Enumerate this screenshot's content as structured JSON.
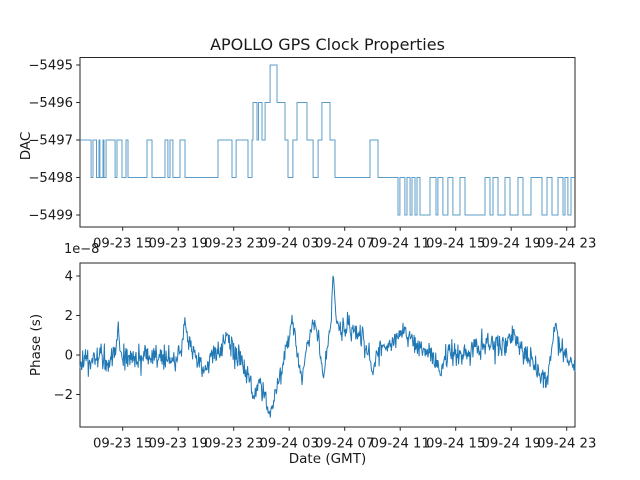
{
  "title": "APOLLO GPS Clock Properties",
  "colors": {
    "dac_line": "#1f77b4",
    "phase_line": "#1f77b4",
    "spine": "#262626",
    "background": "#ffffff"
  },
  "chart_data": [
    {
      "type": "line",
      "subplot": "top",
      "title": "APOLLO GPS Clock Properties",
      "ylabel": "DAC",
      "yticks": [
        -5495,
        -5496,
        -5497,
        -5498,
        -5499
      ],
      "ylim": [
        -5499.33,
        -5494.82
      ],
      "xticklabels": [
        "09-23 15",
        "09-23 19",
        "09-23 23",
        "09-24 03",
        "09-24 07",
        "09-24 11",
        "09-24 15",
        "09-24 19",
        "09-24 23"
      ],
      "xtick_hours": [
        0,
        4,
        8,
        12,
        16,
        20,
        24,
        28,
        32
      ],
      "xlim_hours": [
        -3.08,
        32.6
      ],
      "grid": false,
      "legend": "none",
      "drawstyle": "steps",
      "steps": [
        [
          -3.08,
          -5497
        ],
        [
          -2.28,
          -5498
        ],
        [
          -2.14,
          -5497
        ],
        [
          -1.89,
          -5498
        ],
        [
          -1.71,
          -5497
        ],
        [
          -1.64,
          -5498
        ],
        [
          -1.42,
          -5497
        ],
        [
          -1.35,
          -5498
        ],
        [
          -1.2,
          -5497
        ],
        [
          -0.55,
          -5498
        ],
        [
          -0.41,
          -5497
        ],
        [
          -0.05,
          -5498
        ],
        [
          0.24,
          -5497
        ],
        [
          0.38,
          -5498
        ],
        [
          1.75,
          -5497
        ],
        [
          2.11,
          -5498
        ],
        [
          3.05,
          -5497
        ],
        [
          3.26,
          -5498
        ],
        [
          3.41,
          -5497
        ],
        [
          3.62,
          -5498
        ],
        [
          4.13,
          -5497
        ],
        [
          4.49,
          -5498
        ],
        [
          6.87,
          -5497
        ],
        [
          7.88,
          -5498
        ],
        [
          8.17,
          -5497
        ],
        [
          9.03,
          -5498
        ],
        [
          9.32,
          -5497
        ],
        [
          9.39,
          -5496
        ],
        [
          9.68,
          -5497
        ],
        [
          9.79,
          -5496
        ],
        [
          10.04,
          -5497
        ],
        [
          10.26,
          -5496
        ],
        [
          10.62,
          -5495
        ],
        [
          11.12,
          -5496
        ],
        [
          11.7,
          -5497
        ],
        [
          11.91,
          -5498
        ],
        [
          12.27,
          -5497
        ],
        [
          12.56,
          -5496
        ],
        [
          13.28,
          -5497
        ],
        [
          13.72,
          -5498
        ],
        [
          14.08,
          -5497
        ],
        [
          14.36,
          -5496
        ],
        [
          14.94,
          -5497
        ],
        [
          15.3,
          -5498
        ],
        [
          17.82,
          -5497
        ],
        [
          18.4,
          -5498
        ],
        [
          19.84,
          -5499
        ],
        [
          19.98,
          -5498
        ],
        [
          20.34,
          -5499
        ],
        [
          20.49,
          -5498
        ],
        [
          20.71,
          -5499
        ],
        [
          20.85,
          -5498
        ],
        [
          21.07,
          -5499
        ],
        [
          21.21,
          -5498
        ],
        [
          21.43,
          -5499
        ],
        [
          22.15,
          -5498
        ],
        [
          22.58,
          -5499
        ],
        [
          22.72,
          -5498
        ],
        [
          23.08,
          -5499
        ],
        [
          23.44,
          -5498
        ],
        [
          23.8,
          -5499
        ],
        [
          24.31,
          -5498
        ],
        [
          24.67,
          -5499
        ],
        [
          26.11,
          -5498
        ],
        [
          26.47,
          -5499
        ],
        [
          26.69,
          -5498
        ],
        [
          27.05,
          -5499
        ],
        [
          27.55,
          -5498
        ],
        [
          27.91,
          -5499
        ],
        [
          28.49,
          -5498
        ],
        [
          28.85,
          -5499
        ],
        [
          29.43,
          -5498
        ],
        [
          30.22,
          -5499
        ],
        [
          30.58,
          -5498
        ],
        [
          30.94,
          -5499
        ],
        [
          31.37,
          -5498
        ],
        [
          31.73,
          -5499
        ],
        [
          31.88,
          -5498
        ],
        [
          32.09,
          -5499
        ],
        [
          32.31,
          -5498
        ]
      ],
      "steps_end_hour": 32.6
    },
    {
      "type": "line",
      "subplot": "bottom",
      "ylabel": "Phase (s)",
      "xlabel": "Date (GMT)",
      "offset_text": "1e−8",
      "yticks_1e8": [
        -2,
        0,
        2,
        4
      ],
      "ylim_1e8": [
        -3.63,
        4.66
      ],
      "xticklabels": [
        "09-23 15",
        "09-23 19",
        "09-23 23",
        "09-24 03",
        "09-24 07",
        "09-24 11",
        "09-24 15",
        "09-24 19",
        "09-24 23"
      ],
      "xtick_hours": [
        0,
        4,
        8,
        12,
        16,
        20,
        24,
        28,
        32
      ],
      "xlim_hours": [
        -3.08,
        32.6
      ],
      "grid": false,
      "legend": "none",
      "anchors_1e8": [
        [
          -3.08,
          -0.6,
          0.45
        ],
        [
          -2.6,
          -0.2,
          0.5
        ],
        [
          -1.8,
          -0.35,
          0.55
        ],
        [
          -1.0,
          -0.25,
          0.55
        ],
        [
          -0.5,
          0.1,
          0.45
        ],
        [
          -0.34,
          1.6,
          0.25
        ],
        [
          -0.15,
          0.1,
          0.45
        ],
        [
          0.6,
          -0.1,
          0.5
        ],
        [
          1.6,
          -0.25,
          0.55
        ],
        [
          2.6,
          0.1,
          0.5
        ],
        [
          3.6,
          -0.3,
          0.55
        ],
        [
          4.25,
          0.3,
          0.4
        ],
        [
          4.49,
          1.9,
          0.25
        ],
        [
          4.75,
          0.3,
          0.4
        ],
        [
          5.4,
          -0.2,
          0.5
        ],
        [
          5.79,
          -0.8,
          0.4
        ],
        [
          6.3,
          -0.2,
          0.5
        ],
        [
          7.0,
          0.1,
          0.5
        ],
        [
          7.52,
          1.1,
          0.3
        ],
        [
          7.9,
          0.0,
          0.5
        ],
        [
          8.6,
          -0.4,
          0.55
        ],
        [
          9.17,
          -1.3,
          0.45
        ],
        [
          9.39,
          -2.5,
          0.35
        ],
        [
          9.65,
          -1.4,
          0.45
        ],
        [
          10.2,
          -2.0,
          0.45
        ],
        [
          10.62,
          -3.0,
          0.25
        ],
        [
          11.0,
          -2.0,
          0.4
        ],
        [
          11.5,
          -0.8,
          0.45
        ],
        [
          12.0,
          1.1,
          0.4
        ],
        [
          12.25,
          1.7,
          0.3
        ],
        [
          12.6,
          0.3,
          0.4
        ],
        [
          12.92,
          -1.2,
          0.3
        ],
        [
          13.3,
          0.7,
          0.4
        ],
        [
          13.86,
          1.6,
          0.35
        ],
        [
          14.2,
          0.3,
          0.4
        ],
        [
          14.45,
          -1.1,
          0.3
        ],
        [
          14.8,
          0.6,
          0.35
        ],
        [
          15.05,
          2.1,
          0.3
        ],
        [
          15.17,
          4.3,
          0.1
        ],
        [
          15.35,
          2.0,
          0.3
        ],
        [
          15.7,
          1.3,
          0.4
        ],
        [
          16.3,
          1.6,
          0.45
        ],
        [
          17.0,
          1.1,
          0.5
        ],
        [
          17.6,
          0.3,
          0.45
        ],
        [
          18.05,
          -0.9,
          0.3
        ],
        [
          18.5,
          0.4,
          0.4
        ],
        [
          19.3,
          0.7,
          0.45
        ],
        [
          20.34,
          1.2,
          0.35
        ],
        [
          21.2,
          0.5,
          0.5
        ],
        [
          22.0,
          0.2,
          0.5
        ],
        [
          22.87,
          -0.9,
          0.4
        ],
        [
          23.6,
          0.4,
          0.5
        ],
        [
          24.4,
          -0.2,
          0.5
        ],
        [
          25.2,
          0.3,
          0.5
        ],
        [
          26.2,
          0.5,
          0.5
        ],
        [
          27.2,
          0.3,
          0.5
        ],
        [
          28.13,
          1.0,
          0.35
        ],
        [
          28.8,
          0.1,
          0.5
        ],
        [
          29.8,
          -0.6,
          0.45
        ],
        [
          30.65,
          -1.2,
          0.35
        ],
        [
          31.15,
          1.6,
          0.3
        ],
        [
          31.6,
          0.3,
          0.4
        ],
        [
          32.2,
          -0.2,
          0.4
        ],
        [
          32.6,
          -0.45,
          0.3
        ]
      ]
    }
  ]
}
